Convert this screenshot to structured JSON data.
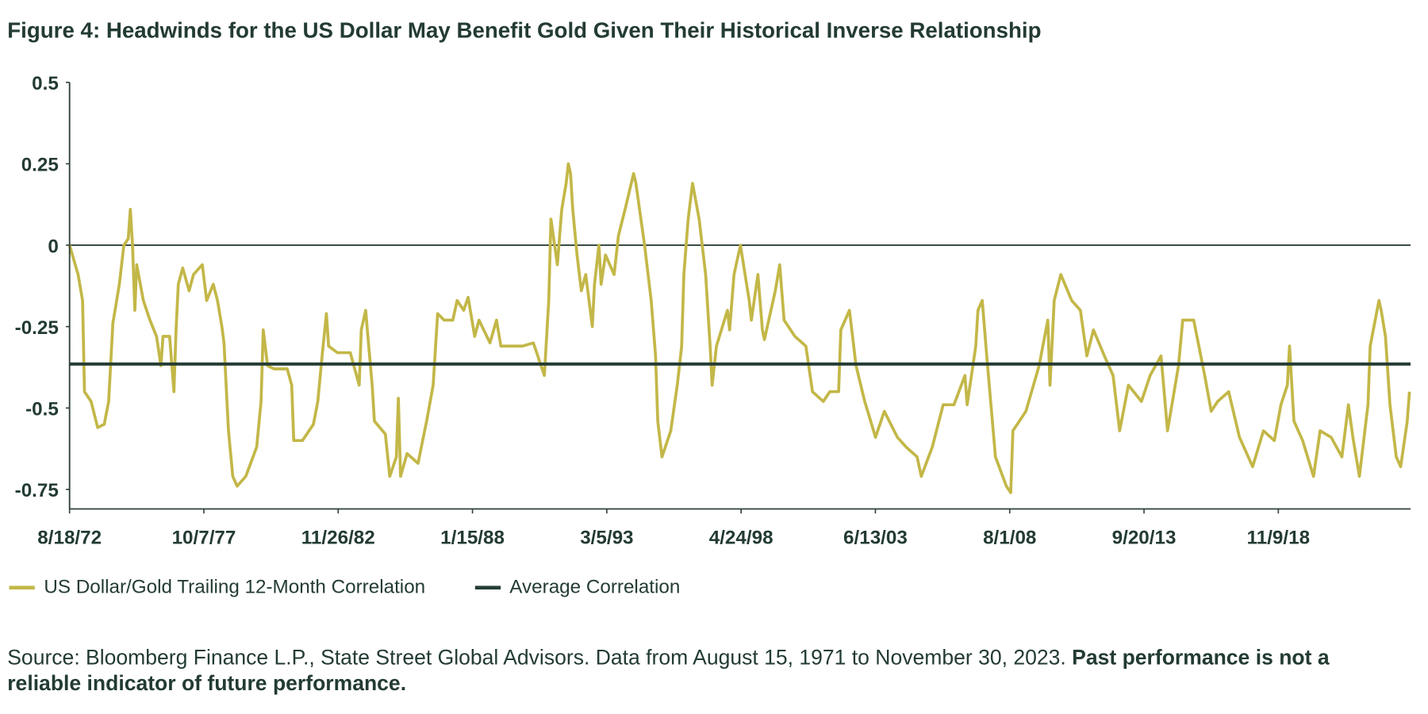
{
  "title": "Figure 4: Headwinds for the US Dollar May Benefit Gold Given Their Historical Inverse Relationship",
  "colors": {
    "series": "#c3b748",
    "average": "#263d35",
    "text": "#233b34",
    "axis": "#2e3f3a"
  },
  "chart_data": {
    "type": "line",
    "title": "Figure 4: Headwinds for the US Dollar May Benefit Gold Given Their Historical Inverse Relationship",
    "xlabel": "",
    "ylabel": "",
    "xlim": [
      "1972-08-18",
      "2023-11-30"
    ],
    "ylim": [
      -0.81,
      0.5
    ],
    "yticks": [
      0.5,
      0.25,
      0,
      -0.25,
      -0.5,
      -0.75
    ],
    "ytick_labels": [
      "0.5",
      "0.25",
      "0",
      "-0.25",
      "-0.5",
      "-0.75"
    ],
    "xticks": [
      "1972-08-18",
      "1977-10-07",
      "1982-11-26",
      "1988-01-15",
      "1993-03-05",
      "1998-04-24",
      "2003-06-13",
      "2008-08-01",
      "2013-09-20",
      "2018-11-09"
    ],
    "xtick_labels": [
      "8/18/72",
      "10/7/77",
      "11/26/82",
      "1/15/88",
      "3/5/93",
      "4/24/98",
      "6/13/03",
      "8/1/08",
      "9/20/13",
      "11/9/18"
    ],
    "grid": false,
    "legend": "bottom",
    "reference_lines": [
      {
        "y": 0
      }
    ],
    "series": [
      {
        "name": "US Dollar/Gold Trailing 12-Month Correlation",
        "color": "#c3b748",
        "points": [
          [
            "1972-08",
            0.0
          ],
          [
            "1972-12",
            -0.09
          ],
          [
            "1973-02",
            -0.17
          ],
          [
            "1973-03",
            -0.45
          ],
          [
            "1973-06",
            -0.48
          ],
          [
            "1973-09",
            -0.56
          ],
          [
            "1973-12",
            -0.55
          ],
          [
            "1974-02",
            -0.48
          ],
          [
            "1974-04",
            -0.24
          ],
          [
            "1974-07",
            -0.12
          ],
          [
            "1974-09",
            0.0
          ],
          [
            "1974-11",
            0.02
          ],
          [
            "1974-12",
            0.11
          ],
          [
            "1975-01",
            0.0
          ],
          [
            "1975-02",
            -0.2
          ],
          [
            "1975-03",
            -0.06
          ],
          [
            "1975-06",
            -0.17
          ],
          [
            "1975-09",
            -0.23
          ],
          [
            "1975-12",
            -0.28
          ],
          [
            "1976-02",
            -0.37
          ],
          [
            "1976-03",
            -0.28
          ],
          [
            "1976-06",
            -0.28
          ],
          [
            "1976-08",
            -0.45
          ],
          [
            "1976-09",
            -0.25
          ],
          [
            "1976-10",
            -0.12
          ],
          [
            "1976-12",
            -0.07
          ],
          [
            "1977-03",
            -0.14
          ],
          [
            "1977-05",
            -0.09
          ],
          [
            "1977-09",
            -0.06
          ],
          [
            "1977-11",
            -0.17
          ],
          [
            "1978-02",
            -0.12
          ],
          [
            "1978-04",
            -0.17
          ],
          [
            "1978-06",
            -0.25
          ],
          [
            "1978-07",
            -0.3
          ],
          [
            "1978-09",
            -0.57
          ],
          [
            "1978-11",
            -0.71
          ],
          [
            "1979-01",
            -0.74
          ],
          [
            "1979-05",
            -0.71
          ],
          [
            "1979-10",
            -0.62
          ],
          [
            "1979-12",
            -0.48
          ],
          [
            "1980-01",
            -0.26
          ],
          [
            "1980-03",
            -0.37
          ],
          [
            "1980-06",
            -0.38
          ],
          [
            "1980-12",
            -0.38
          ],
          [
            "1981-02",
            -0.43
          ],
          [
            "1981-03",
            -0.6
          ],
          [
            "1981-07",
            -0.6
          ],
          [
            "1981-12",
            -0.55
          ],
          [
            "1982-02",
            -0.48
          ],
          [
            "1982-04",
            -0.34
          ],
          [
            "1982-06",
            -0.21
          ],
          [
            "1982-07",
            -0.31
          ],
          [
            "1982-11",
            -0.33
          ],
          [
            "1983-05",
            -0.33
          ],
          [
            "1983-09",
            -0.43
          ],
          [
            "1983-10",
            -0.26
          ],
          [
            "1983-12",
            -0.2
          ],
          [
            "1984-01",
            -0.28
          ],
          [
            "1984-03",
            -0.43
          ],
          [
            "1984-04",
            -0.54
          ],
          [
            "1984-09",
            -0.58
          ],
          [
            "1984-11",
            -0.71
          ],
          [
            "1985-02",
            -0.65
          ],
          [
            "1985-03",
            -0.47
          ],
          [
            "1985-04",
            -0.71
          ],
          [
            "1985-07",
            -0.64
          ],
          [
            "1985-12",
            -0.67
          ],
          [
            "1986-04",
            -0.54
          ],
          [
            "1986-07",
            -0.43
          ],
          [
            "1986-09",
            -0.21
          ],
          [
            "1986-12",
            -0.23
          ],
          [
            "1987-04",
            -0.23
          ],
          [
            "1987-06",
            -0.17
          ],
          [
            "1987-09",
            -0.2
          ],
          [
            "1987-11",
            -0.16
          ],
          [
            "1988-02",
            -0.28
          ],
          [
            "1988-04",
            -0.23
          ],
          [
            "1988-09",
            -0.3
          ],
          [
            "1988-12",
            -0.23
          ],
          [
            "1989-02",
            -0.31
          ],
          [
            "1989-08",
            -0.31
          ],
          [
            "1989-12",
            -0.31
          ],
          [
            "1990-05",
            -0.3
          ],
          [
            "1990-10",
            -0.4
          ],
          [
            "1990-12",
            -0.17
          ],
          [
            "1991-01",
            0.08
          ],
          [
            "1991-04",
            -0.06
          ],
          [
            "1991-06",
            0.11
          ],
          [
            "1991-08",
            0.19
          ],
          [
            "1991-09",
            0.25
          ],
          [
            "1991-10",
            0.22
          ],
          [
            "1991-11",
            0.11
          ],
          [
            "1992-01",
            -0.03
          ],
          [
            "1992-03",
            -0.14
          ],
          [
            "1992-05",
            -0.09
          ],
          [
            "1992-08",
            -0.25
          ],
          [
            "1992-09",
            -0.12
          ],
          [
            "1992-11",
            0.0
          ],
          [
            "1992-12",
            -0.12
          ],
          [
            "1993-02",
            -0.03
          ],
          [
            "1993-06",
            -0.09
          ],
          [
            "1993-08",
            0.03
          ],
          [
            "1993-11",
            0.11
          ],
          [
            "1994-03",
            0.22
          ],
          [
            "1994-04",
            0.19
          ],
          [
            "1994-08",
            0.0
          ],
          [
            "1994-11",
            -0.17
          ],
          [
            "1995-01",
            -0.34
          ],
          [
            "1995-02",
            -0.54
          ],
          [
            "1995-04",
            -0.65
          ],
          [
            "1995-08",
            -0.57
          ],
          [
            "1995-11",
            -0.43
          ],
          [
            "1996-01",
            -0.31
          ],
          [
            "1996-02",
            -0.09
          ],
          [
            "1996-04",
            0.08
          ],
          [
            "1996-06",
            0.19
          ],
          [
            "1996-09",
            0.08
          ],
          [
            "1996-12",
            -0.09
          ],
          [
            "1997-02",
            -0.31
          ],
          [
            "1997-03",
            -0.43
          ],
          [
            "1997-05",
            -0.31
          ],
          [
            "1997-10",
            -0.2
          ],
          [
            "1997-11",
            -0.26
          ],
          [
            "1998-01",
            -0.09
          ],
          [
            "1998-04",
            0.0
          ],
          [
            "1998-08",
            -0.17
          ],
          [
            "1998-09",
            -0.23
          ],
          [
            "1998-12",
            -0.09
          ],
          [
            "1999-02",
            -0.26
          ],
          [
            "1999-03",
            -0.29
          ],
          [
            "1999-08",
            -0.14
          ],
          [
            "1999-10",
            -0.06
          ],
          [
            "1999-12",
            -0.23
          ],
          [
            "2000-05",
            -0.28
          ],
          [
            "2000-10",
            -0.31
          ],
          [
            "2001-01",
            -0.45
          ],
          [
            "2001-06",
            -0.48
          ],
          [
            "2001-09",
            -0.45
          ],
          [
            "2002-01",
            -0.45
          ],
          [
            "2002-02",
            -0.26
          ],
          [
            "2002-06",
            -0.2
          ],
          [
            "2002-09",
            -0.37
          ],
          [
            "2003-01",
            -0.48
          ],
          [
            "2003-06",
            -0.59
          ],
          [
            "2003-10",
            -0.51
          ],
          [
            "2004-04",
            -0.59
          ],
          [
            "2004-08",
            -0.62
          ],
          [
            "2005-01",
            -0.65
          ],
          [
            "2005-03",
            -0.71
          ],
          [
            "2005-08",
            -0.62
          ],
          [
            "2006-01",
            -0.49
          ],
          [
            "2006-06",
            -0.49
          ],
          [
            "2006-11",
            -0.4
          ],
          [
            "2006-12",
            -0.49
          ],
          [
            "2007-04",
            -0.31
          ],
          [
            "2007-05",
            -0.2
          ],
          [
            "2007-07",
            -0.17
          ],
          [
            "2007-09",
            -0.34
          ],
          [
            "2008-01",
            -0.65
          ],
          [
            "2008-06",
            -0.74
          ],
          [
            "2008-08",
            -0.76
          ],
          [
            "2008-09",
            -0.57
          ],
          [
            "2009-03",
            -0.51
          ],
          [
            "2009-09",
            -0.37
          ],
          [
            "2010-01",
            -0.23
          ],
          [
            "2010-02",
            -0.43
          ],
          [
            "2010-04",
            -0.17
          ],
          [
            "2010-07",
            -0.09
          ],
          [
            "2010-12",
            -0.17
          ],
          [
            "2011-04",
            -0.2
          ],
          [
            "2011-07",
            -0.34
          ],
          [
            "2011-10",
            -0.26
          ],
          [
            "2012-03",
            -0.34
          ],
          [
            "2012-07",
            -0.4
          ],
          [
            "2012-10",
            -0.57
          ],
          [
            "2013-02",
            -0.43
          ],
          [
            "2013-08",
            -0.48
          ],
          [
            "2013-12",
            -0.4
          ],
          [
            "2014-05",
            -0.34
          ],
          [
            "2014-08",
            -0.57
          ],
          [
            "2015-01",
            -0.37
          ],
          [
            "2015-03",
            -0.23
          ],
          [
            "2015-08",
            -0.23
          ],
          [
            "2016-01",
            -0.4
          ],
          [
            "2016-04",
            -0.51
          ],
          [
            "2016-07",
            -0.48
          ],
          [
            "2016-12",
            -0.45
          ],
          [
            "2017-05",
            -0.59
          ],
          [
            "2017-11",
            -0.68
          ],
          [
            "2018-04",
            -0.57
          ],
          [
            "2018-09",
            -0.6
          ],
          [
            "2018-12",
            -0.49
          ],
          [
            "2019-03",
            -0.43
          ],
          [
            "2019-04",
            -0.31
          ],
          [
            "2019-06",
            -0.54
          ],
          [
            "2019-10",
            -0.6
          ],
          [
            "2020-03",
            -0.71
          ],
          [
            "2020-06",
            -0.57
          ],
          [
            "2020-11",
            -0.59
          ],
          [
            "2021-04",
            -0.65
          ],
          [
            "2021-07",
            -0.49
          ],
          [
            "2021-09",
            -0.59
          ],
          [
            "2021-12",
            -0.71
          ],
          [
            "2022-04",
            -0.49
          ],
          [
            "2022-05",
            -0.31
          ],
          [
            "2022-09",
            -0.17
          ],
          [
            "2022-10",
            -0.2
          ],
          [
            "2022-12",
            -0.28
          ],
          [
            "2023-02",
            -0.49
          ],
          [
            "2023-05",
            -0.65
          ],
          [
            "2023-07",
            -0.68
          ],
          [
            "2023-10",
            -0.54
          ],
          [
            "2023-11",
            -0.45
          ]
        ]
      },
      {
        "name": "Average Correlation",
        "color": "#263d35",
        "constant": -0.365
      }
    ]
  },
  "legend": {
    "items": [
      {
        "label": "US Dollar/Gold Trailing 12-Month Correlation"
      },
      {
        "label": "Average Correlation"
      }
    ]
  },
  "source": {
    "text": "Source: Bloomberg Finance L.P., State Street Global Advisors. Data from August 15, 1971 to November 30, 2023. ",
    "bold": "Past performance is not a reliable indicator of future performance."
  }
}
